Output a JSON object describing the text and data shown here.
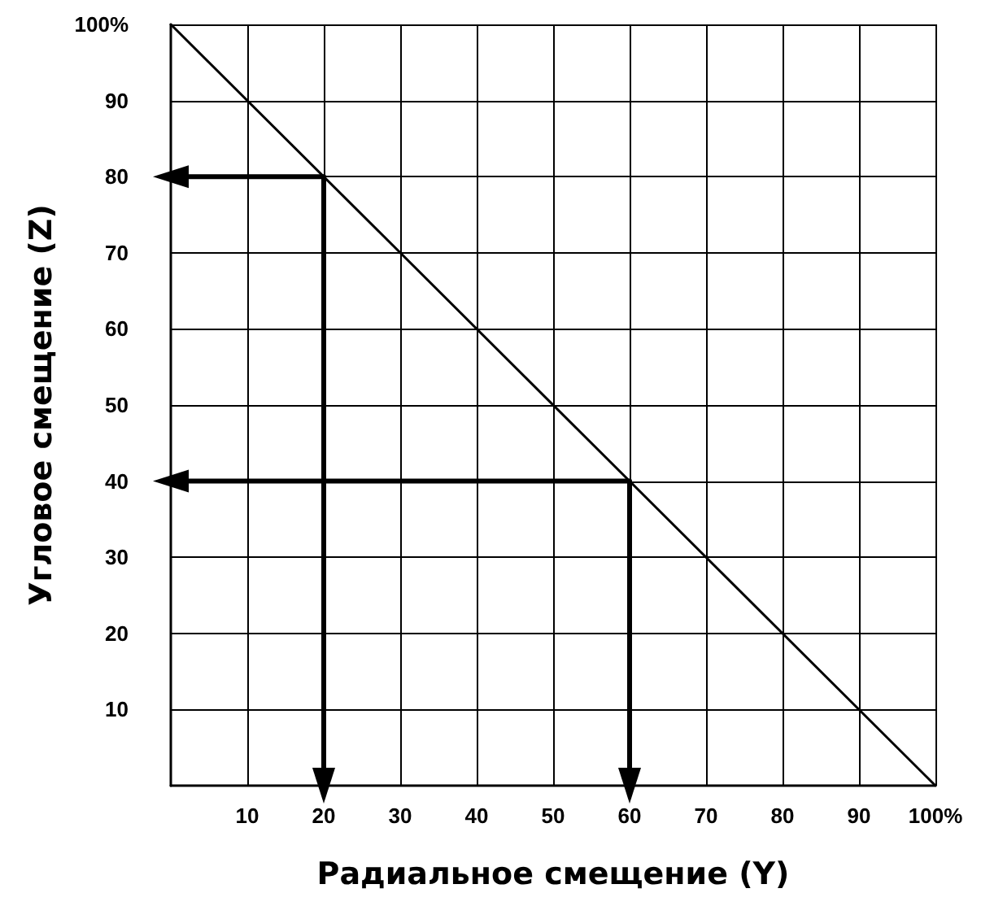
{
  "chart_data": {
    "type": "line",
    "xlabel": "Радиальное смещение (Y)",
    "ylabel": "Угловое смещение (Z)",
    "xlim": [
      0,
      100
    ],
    "ylim": [
      0,
      100
    ],
    "xticks": [
      10,
      20,
      30,
      40,
      50,
      60,
      70,
      80,
      90,
      {
        "value": 100,
        "label": "100%"
      }
    ],
    "yticks": [
      10,
      20,
      30,
      40,
      50,
      60,
      70,
      80,
      90,
      {
        "value": 100,
        "label": "100%"
      }
    ],
    "grid": true,
    "line_style": "solid",
    "series": [
      {
        "color": "#000000",
        "x": [
          0,
          100
        ],
        "values": [
          100,
          0
        ],
        "marker": "none"
      },
      {
        "color": "#000000",
        "x": [
          0,
          20,
          20
        ],
        "values": [
          80,
          80,
          0
        ],
        "marker": "triangle"
      },
      {
        "color": "#000000",
        "x": [
          0,
          60,
          60
        ],
        "values": [
          40,
          40,
          0
        ],
        "marker": "triangle"
      }
    ]
  }
}
